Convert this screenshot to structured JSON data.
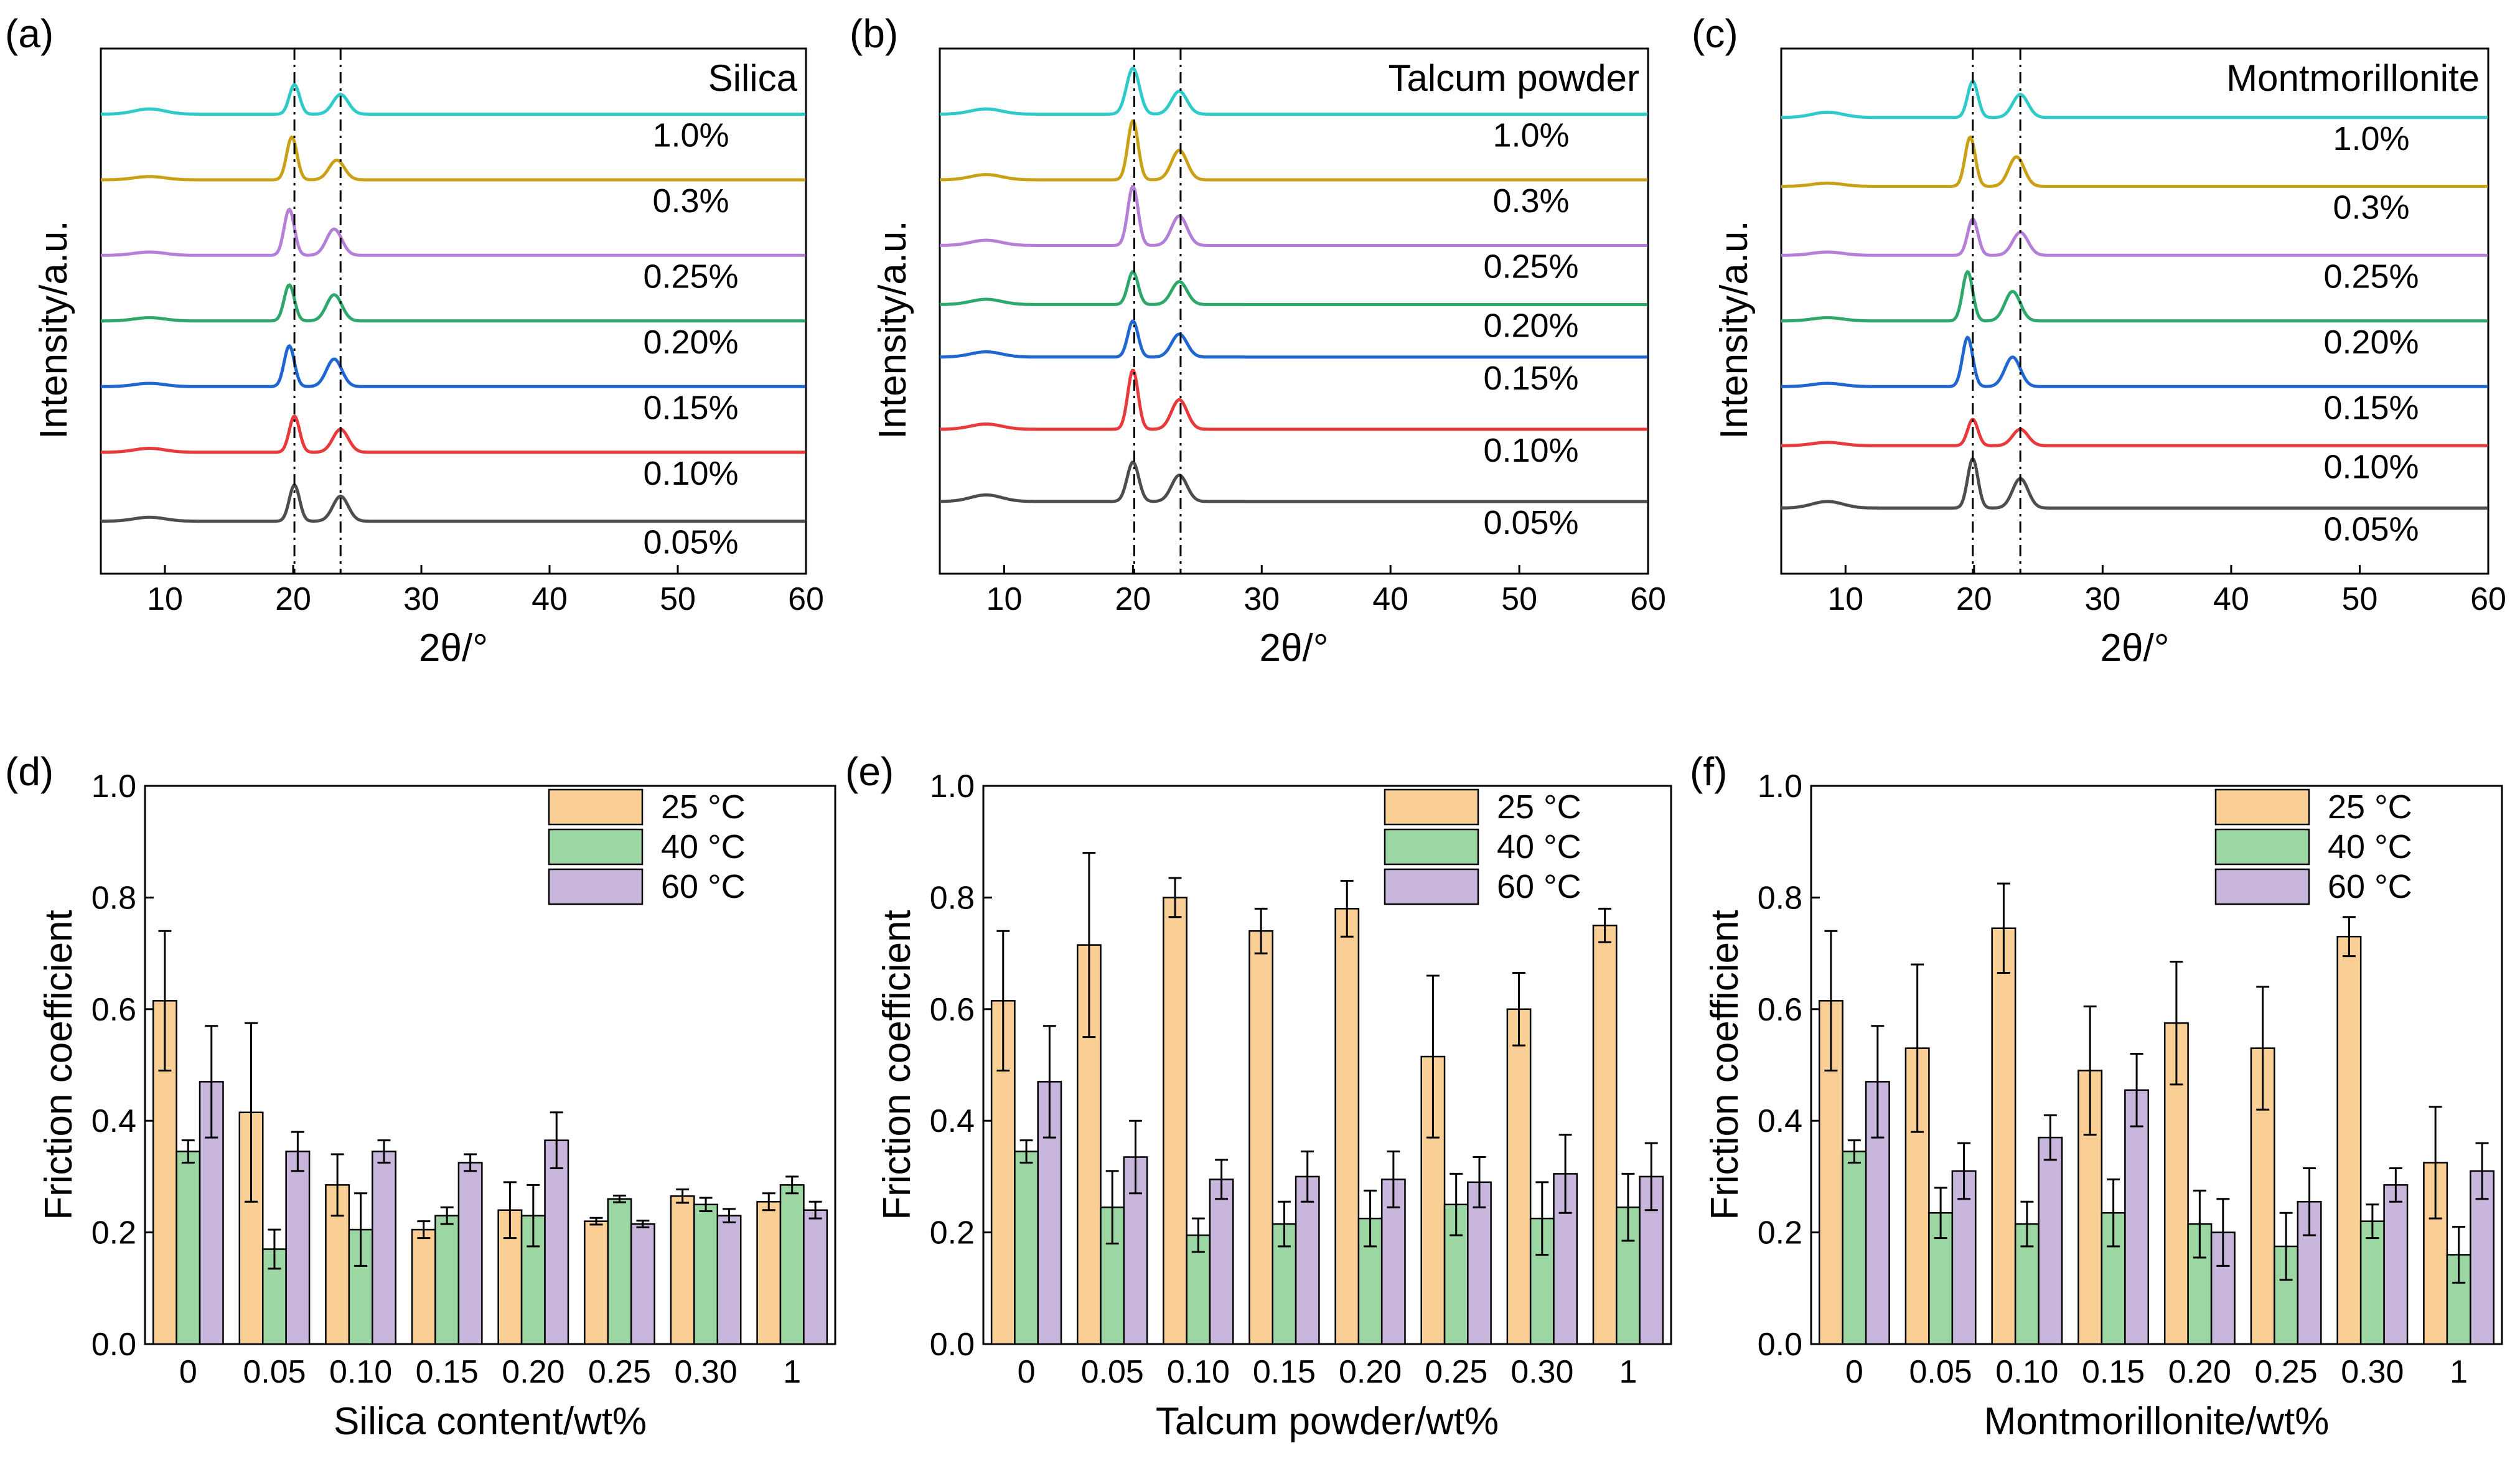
{
  "chart_data": [
    {
      "id": "a",
      "type": "line",
      "panel_label": "(a)",
      "title": "Silica",
      "xlabel": "2θ/°",
      "ylabel": "Intensity/a.u.",
      "xlim": [
        5,
        60
      ],
      "ylim": [
        0,
        8
      ],
      "xticks": [
        "10",
        "20",
        "30",
        "40",
        "50",
        "60"
      ],
      "reference_lines": [
        20.1,
        23.7
      ],
      "series": [
        {
          "name": "0.05%",
          "color": "#4d4d4d",
          "baseline": 0.8,
          "peaks": [
            {
              "x": 8.8,
              "h": 0.06,
              "w": 1.2
            },
            {
              "x": 20.1,
              "h": 0.55,
              "w": 0.4
            },
            {
              "x": 23.7,
              "h": 0.38,
              "w": 0.6
            }
          ]
        },
        {
          "name": "0.10%",
          "color": "#e8393b",
          "baseline": 1.85,
          "peaks": [
            {
              "x": 8.8,
              "h": 0.06,
              "w": 1.2
            },
            {
              "x": 20.1,
              "h": 0.55,
              "w": 0.4
            },
            {
              "x": 23.7,
              "h": 0.35,
              "w": 0.6
            }
          ]
        },
        {
          "name": "0.15%",
          "color": "#1f66d1",
          "baseline": 2.85,
          "peaks": [
            {
              "x": 8.8,
              "h": 0.05,
              "w": 1.2
            },
            {
              "x": 19.7,
              "h": 0.62,
              "w": 0.4
            },
            {
              "x": 23.2,
              "h": 0.42,
              "w": 0.6
            }
          ]
        },
        {
          "name": "0.20%",
          "color": "#2da86a",
          "baseline": 3.85,
          "peaks": [
            {
              "x": 8.8,
              "h": 0.05,
              "w": 1.2
            },
            {
              "x": 19.7,
              "h": 0.55,
              "w": 0.4
            },
            {
              "x": 23.2,
              "h": 0.4,
              "w": 0.6
            }
          ]
        },
        {
          "name": "0.25%",
          "color": "#b47fd6",
          "baseline": 4.85,
          "peaks": [
            {
              "x": 8.8,
              "h": 0.05,
              "w": 1.2
            },
            {
              "x": 19.7,
              "h": 0.7,
              "w": 0.4
            },
            {
              "x": 23.2,
              "h": 0.4,
              "w": 0.6
            }
          ]
        },
        {
          "name": "0.3%",
          "color": "#c9a016",
          "baseline": 6.0,
          "peaks": [
            {
              "x": 8.8,
              "h": 0.05,
              "w": 1.2
            },
            {
              "x": 19.9,
              "h": 0.65,
              "w": 0.4
            },
            {
              "x": 23.4,
              "h": 0.3,
              "w": 0.6
            }
          ]
        },
        {
          "name": "1.0%",
          "color": "#2ec9c9",
          "baseline": 7.0,
          "peaks": [
            {
              "x": 8.8,
              "h": 0.08,
              "w": 1.2
            },
            {
              "x": 20.1,
              "h": 0.45,
              "w": 0.4
            },
            {
              "x": 23.7,
              "h": 0.3,
              "w": 0.6
            }
          ]
        }
      ]
    },
    {
      "id": "b",
      "type": "line",
      "panel_label": "(b)",
      "title": "Talcum powder",
      "xlabel": "2θ/°",
      "ylabel": "Intensity/a.u.",
      "xlim": [
        5,
        60
      ],
      "ylim": [
        0,
        8
      ],
      "xticks": [
        "10",
        "20",
        "30",
        "40",
        "50",
        "60"
      ],
      "reference_lines": [
        20.1,
        23.7
      ],
      "series": [
        {
          "name": "0.05%",
          "color": "#4d4d4d",
          "baseline": 1.1,
          "peaks": [
            {
              "x": 8.6,
              "h": 0.1,
              "w": 1.2
            },
            {
              "x": 20.0,
              "h": 0.6,
              "w": 0.45
            },
            {
              "x": 23.6,
              "h": 0.4,
              "w": 0.6
            }
          ]
        },
        {
          "name": "0.10%",
          "color": "#e8393b",
          "baseline": 2.2,
          "peaks": [
            {
              "x": 8.6,
              "h": 0.08,
              "w": 1.2
            },
            {
              "x": 20.0,
              "h": 0.9,
              "w": 0.4
            },
            {
              "x": 23.6,
              "h": 0.45,
              "w": 0.6
            }
          ]
        },
        {
          "name": "0.15%",
          "color": "#1f66d1",
          "baseline": 3.3,
          "peaks": [
            {
              "x": 8.6,
              "h": 0.08,
              "w": 1.2
            },
            {
              "x": 20.0,
              "h": 0.55,
              "w": 0.4
            },
            {
              "x": 23.6,
              "h": 0.35,
              "w": 0.6
            }
          ]
        },
        {
          "name": "0.20%",
          "color": "#2da86a",
          "baseline": 4.1,
          "peaks": [
            {
              "x": 8.6,
              "h": 0.08,
              "w": 1.2
            },
            {
              "x": 20.0,
              "h": 0.5,
              "w": 0.4
            },
            {
              "x": 23.6,
              "h": 0.35,
              "w": 0.6
            }
          ]
        },
        {
          "name": "0.25%",
          "color": "#b47fd6",
          "baseline": 5.0,
          "peaks": [
            {
              "x": 8.6,
              "h": 0.08,
              "w": 1.2
            },
            {
              "x": 20.0,
              "h": 0.9,
              "w": 0.4
            },
            {
              "x": 23.6,
              "h": 0.45,
              "w": 0.6
            }
          ]
        },
        {
          "name": "0.3%",
          "color": "#c9a016",
          "baseline": 6.0,
          "peaks": [
            {
              "x": 8.6,
              "h": 0.08,
              "w": 1.2
            },
            {
              "x": 20.0,
              "h": 0.9,
              "w": 0.4
            },
            {
              "x": 23.6,
              "h": 0.45,
              "w": 0.6
            }
          ]
        },
        {
          "name": "1.0%",
          "color": "#2ec9c9",
          "baseline": 7.0,
          "peaks": [
            {
              "x": 8.6,
              "h": 0.08,
              "w": 1.2
            },
            {
              "x": 20.0,
              "h": 0.7,
              "w": 0.5
            },
            {
              "x": 23.6,
              "h": 0.35,
              "w": 0.6
            }
          ]
        }
      ]
    },
    {
      "id": "c",
      "type": "line",
      "panel_label": "(c)",
      "title": "Montmorillonite",
      "xlabel": "2θ/°",
      "ylabel": "Intensity/a.u.",
      "xlim": [
        5,
        60
      ],
      "ylim": [
        0,
        8
      ],
      "xticks": [
        "10",
        "20",
        "30",
        "40",
        "50",
        "60"
      ],
      "reference_lines": [
        19.9,
        23.6
      ],
      "series": [
        {
          "name": "0.05%",
          "color": "#4d4d4d",
          "baseline": 1.0,
          "peaks": [
            {
              "x": 8.6,
              "h": 0.1,
              "w": 1.2
            },
            {
              "x": 19.9,
              "h": 0.75,
              "w": 0.4
            },
            {
              "x": 23.6,
              "h": 0.45,
              "w": 0.6
            }
          ]
        },
        {
          "name": "0.10%",
          "color": "#e8393b",
          "baseline": 1.95,
          "peaks": [
            {
              "x": 8.6,
              "h": 0.05,
              "w": 1.2
            },
            {
              "x": 19.9,
              "h": 0.4,
              "w": 0.4
            },
            {
              "x": 23.6,
              "h": 0.25,
              "w": 0.6
            }
          ]
        },
        {
          "name": "0.15%",
          "color": "#1f66d1",
          "baseline": 2.85,
          "peaks": [
            {
              "x": 8.6,
              "h": 0.05,
              "w": 1.2
            },
            {
              "x": 19.5,
              "h": 0.75,
              "w": 0.4
            },
            {
              "x": 23.0,
              "h": 0.45,
              "w": 0.6
            }
          ]
        },
        {
          "name": "0.20%",
          "color": "#2da86a",
          "baseline": 3.85,
          "peaks": [
            {
              "x": 8.6,
              "h": 0.05,
              "w": 1.2
            },
            {
              "x": 19.5,
              "h": 0.75,
              "w": 0.4
            },
            {
              "x": 23.0,
              "h": 0.45,
              "w": 0.6
            }
          ]
        },
        {
          "name": "0.25%",
          "color": "#b47fd6",
          "baseline": 4.85,
          "peaks": [
            {
              "x": 8.6,
              "h": 0.05,
              "w": 1.2
            },
            {
              "x": 19.9,
              "h": 0.55,
              "w": 0.4
            },
            {
              "x": 23.6,
              "h": 0.35,
              "w": 0.6
            }
          ]
        },
        {
          "name": "0.3%",
          "color": "#c9a016",
          "baseline": 5.9,
          "peaks": [
            {
              "x": 8.6,
              "h": 0.05,
              "w": 1.2
            },
            {
              "x": 19.7,
              "h": 0.75,
              "w": 0.4
            },
            {
              "x": 23.3,
              "h": 0.45,
              "w": 0.6
            }
          ]
        },
        {
          "name": "1.0%",
          "color": "#2ec9c9",
          "baseline": 6.95,
          "peaks": [
            {
              "x": 8.6,
              "h": 0.08,
              "w": 1.2
            },
            {
              "x": 19.9,
              "h": 0.55,
              "w": 0.4
            },
            {
              "x": 23.6,
              "h": 0.35,
              "w": 0.6
            }
          ]
        }
      ]
    },
    {
      "id": "d",
      "type": "bar",
      "panel_label": "(d)",
      "title": "",
      "xlabel": "Silica content/wt%",
      "ylabel": "Friction coefficient",
      "ylim": [
        0,
        1.0
      ],
      "yticks": [
        "0.0",
        "0.2",
        "0.4",
        "0.6",
        "0.8",
        "1.0"
      ],
      "categories": [
        "0",
        "0.05",
        "0.10",
        "0.15",
        "0.20",
        "0.25",
        "0.30",
        "1"
      ],
      "series": [
        {
          "name": "25 °C",
          "color": "#f9cf96",
          "values": [
            0.615,
            0.415,
            0.285,
            0.205,
            0.24,
            0.22,
            0.265,
            0.255
          ],
          "errors": [
            0.125,
            0.16,
            0.055,
            0.015,
            0.05,
            0.006,
            0.012,
            0.015
          ]
        },
        {
          "name": "40 °C",
          "color": "#9bd6a3",
          "values": [
            0.345,
            0.17,
            0.205,
            0.23,
            0.23,
            0.26,
            0.25,
            0.285
          ],
          "errors": [
            0.02,
            0.035,
            0.065,
            0.015,
            0.055,
            0.006,
            0.012,
            0.015
          ]
        },
        {
          "name": "60 °C",
          "color": "#c8b6dd",
          "values": [
            0.47,
            0.345,
            0.345,
            0.325,
            0.365,
            0.215,
            0.23,
            0.24
          ],
          "errors": [
            0.1,
            0.035,
            0.02,
            0.015,
            0.05,
            0.006,
            0.012,
            0.015
          ]
        }
      ]
    },
    {
      "id": "e",
      "type": "bar",
      "panel_label": "(e)",
      "title": "",
      "xlabel": "Talcum powder/wt%",
      "ylabel": "Friction coefficient",
      "ylim": [
        0,
        1.0
      ],
      "yticks": [
        "0.0",
        "0.2",
        "0.4",
        "0.6",
        "0.8",
        "1.0"
      ],
      "categories": [
        "0",
        "0.05",
        "0.10",
        "0.15",
        "0.20",
        "0.25",
        "0.30",
        "1"
      ],
      "series": [
        {
          "name": "25 °C",
          "color": "#f9cf96",
          "values": [
            0.615,
            0.715,
            0.8,
            0.74,
            0.78,
            0.515,
            0.6,
            0.75
          ],
          "errors": [
            0.125,
            0.165,
            0.035,
            0.04,
            0.05,
            0.145,
            0.065,
            0.03
          ]
        },
        {
          "name": "40 °C",
          "color": "#9bd6a3",
          "values": [
            0.345,
            0.245,
            0.195,
            0.215,
            0.225,
            0.25,
            0.225,
            0.245
          ],
          "errors": [
            0.02,
            0.065,
            0.03,
            0.04,
            0.05,
            0.055,
            0.065,
            0.06
          ]
        },
        {
          "name": "60 °C",
          "color": "#c8b6dd",
          "values": [
            0.47,
            0.335,
            0.295,
            0.3,
            0.295,
            0.29,
            0.305,
            0.3
          ],
          "errors": [
            0.1,
            0.065,
            0.035,
            0.045,
            0.05,
            0.045,
            0.07,
            0.06
          ]
        }
      ]
    },
    {
      "id": "f",
      "type": "bar",
      "panel_label": "(f)",
      "title": "",
      "xlabel": "Montmorillonite/wt%",
      "ylabel": "Friction coefficient",
      "ylim": [
        0,
        1.0
      ],
      "yticks": [
        "0.0",
        "0.2",
        "0.4",
        "0.6",
        "0.8",
        "1.0"
      ],
      "categories": [
        "0",
        "0.05",
        "0.10",
        "0.15",
        "0.20",
        "0.25",
        "0.30",
        "1"
      ],
      "series": [
        {
          "name": "25 °C",
          "color": "#f9cf96",
          "values": [
            0.615,
            0.53,
            0.745,
            0.49,
            0.575,
            0.53,
            0.73,
            0.325
          ],
          "errors": [
            0.125,
            0.15,
            0.08,
            0.115,
            0.11,
            0.11,
            0.035,
            0.1
          ]
        },
        {
          "name": "40 °C",
          "color": "#9bd6a3",
          "values": [
            0.345,
            0.235,
            0.215,
            0.235,
            0.215,
            0.175,
            0.22,
            0.16
          ],
          "errors": [
            0.02,
            0.045,
            0.04,
            0.06,
            0.06,
            0.06,
            0.03,
            0.05
          ]
        },
        {
          "name": "60 °C",
          "color": "#c8b6dd",
          "values": [
            0.47,
            0.31,
            0.37,
            0.455,
            0.2,
            0.255,
            0.285,
            0.31
          ],
          "errors": [
            0.1,
            0.05,
            0.04,
            0.065,
            0.06,
            0.06,
            0.03,
            0.05
          ]
        }
      ]
    }
  ]
}
